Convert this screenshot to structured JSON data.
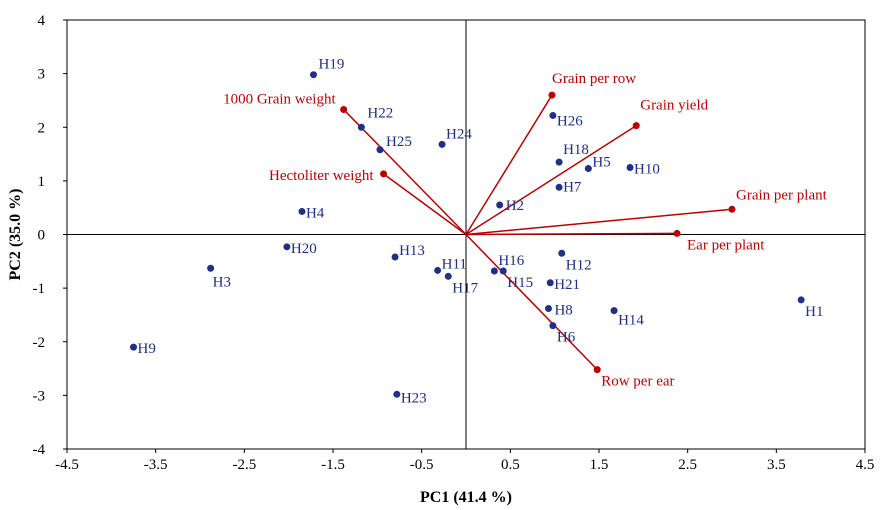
{
  "chart_data": {
    "type": "scatter",
    "title": "",
    "xlabel": "PC1 (41.4 %)",
    "ylabel": "PC2 (35.0 %)",
    "xlim": [
      -4.5,
      4.5
    ],
    "ylim": [
      -4,
      4
    ],
    "xticks": [
      "-4.5",
      "-3.5",
      "-2.5",
      "-1.5",
      "-0.5",
      "0.5",
      "1.5",
      "2.5",
      "3.5",
      "4.5"
    ],
    "yticks": [
      "4",
      "3",
      "2",
      "1",
      "0",
      "-1",
      "-2",
      "-3",
      "-4"
    ],
    "grid": false,
    "observation_color": "#1f2f8a",
    "loading_color": "#c00000",
    "observations": [
      {
        "label": "H1",
        "x": 3.78,
        "y": -1.22
      },
      {
        "label": "H2",
        "x": 0.38,
        "y": 0.55
      },
      {
        "label": "H3",
        "x": -2.88,
        "y": -0.63
      },
      {
        "label": "H4",
        "x": -1.85,
        "y": 0.43
      },
      {
        "label": "H5",
        "x": 1.38,
        "y": 1.23
      },
      {
        "label": "H6",
        "x": 0.98,
        "y": -1.7
      },
      {
        "label": "H7",
        "x": 1.05,
        "y": 0.88
      },
      {
        "label": "H8",
        "x": 0.93,
        "y": -1.38
      },
      {
        "label": "H9",
        "x": -3.75,
        "y": -2.1
      },
      {
        "label": "H10",
        "x": 1.85,
        "y": 1.25
      },
      {
        "label": "H11",
        "x": -0.32,
        "y": -0.67
      },
      {
        "label": "H12",
        "x": 1.08,
        "y": -0.35
      },
      {
        "label": "H13",
        "x": -0.8,
        "y": -0.42
      },
      {
        "label": "H14",
        "x": 1.67,
        "y": -1.42
      },
      {
        "label": "H15",
        "x": 0.42,
        "y": -0.68
      },
      {
        "label": "H16",
        "x": 0.32,
        "y": -0.68
      },
      {
        "label": "H17",
        "x": -0.2,
        "y": -0.78
      },
      {
        "label": "H18",
        "x": 1.05,
        "y": 1.35
      },
      {
        "label": "H19",
        "x": -1.72,
        "y": 2.98
      },
      {
        "label": "H20",
        "x": -2.02,
        "y": -0.23
      },
      {
        "label": "H21",
        "x": 0.95,
        "y": -0.9
      },
      {
        "label": "H22",
        "x": -1.18,
        "y": 2.0
      },
      {
        "label": "H23",
        "x": -0.78,
        "y": -2.98
      },
      {
        "label": "H24",
        "x": -0.27,
        "y": 1.68
      },
      {
        "label": "H25",
        "x": -0.97,
        "y": 1.58
      },
      {
        "label": "H26",
        "x": 0.98,
        "y": 2.22
      }
    ],
    "loadings": [
      {
        "label": "Grain per row",
        "x": 0.97,
        "y": 2.6
      },
      {
        "label": "Grain yield",
        "x": 1.92,
        "y": 2.03
      },
      {
        "label": "Grain per plant",
        "x": 3.0,
        "y": 0.47
      },
      {
        "label": "Ear per plant",
        "x": 2.38,
        "y": 0.02
      },
      {
        "label": "Row per ear",
        "x": 1.48,
        "y": -2.52
      },
      {
        "label": "1000 Grain weight",
        "x": -1.38,
        "y": 2.33
      },
      {
        "label": "Hectoliter weight",
        "x": -0.93,
        "y": 1.13
      }
    ]
  }
}
